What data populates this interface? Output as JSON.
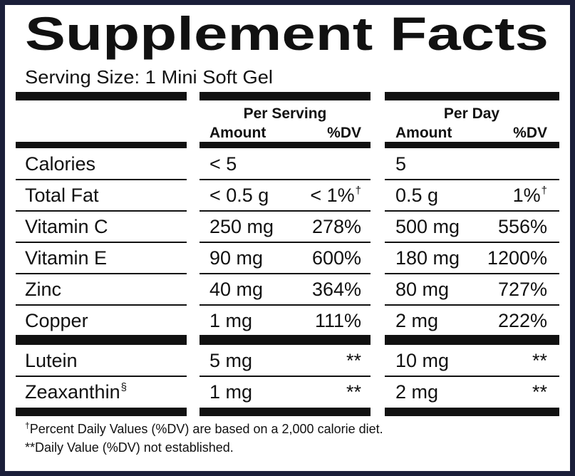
{
  "header": {
    "title": "Supplement Facts",
    "serving_size": "Serving Size: 1 Mini Soft Gel"
  },
  "table": {
    "groups": [
      "Per Serving",
      "Per Day"
    ],
    "columns": [
      "Amount",
      "%DV",
      "Amount",
      "%DV"
    ],
    "sections": [
      [
        {
          "name": "Calories",
          "serving_amount": "< 5",
          "day_amount": "5"
        },
        {
          "name": "Total Fat",
          "serving_amount": "< 0.5 g",
          "serving_dv": "< 1%",
          "serving_dv_mark": "†",
          "day_amount": "0.5 g",
          "day_dv": "1%",
          "day_dv_mark": "†"
        },
        {
          "name": "Vitamin C",
          "serving_amount": "250 mg",
          "serving_dv": "278%",
          "day_amount": "500 mg",
          "day_dv": "556%"
        },
        {
          "name": "Vitamin E",
          "serving_amount": "90 mg",
          "serving_dv": "600%",
          "day_amount": "180 mg",
          "day_dv": "1200%"
        },
        {
          "name": "Zinc",
          "serving_amount": "40 mg",
          "serving_dv": "364%",
          "day_amount": "80 mg",
          "day_dv": "727%"
        },
        {
          "name": "Copper",
          "serving_amount": "1 mg",
          "serving_dv": "111%",
          "day_amount": "2 mg",
          "day_dv": "222%"
        }
      ],
      [
        {
          "name": "Lutein",
          "serving_amount": "5 mg",
          "serving_dv": "**",
          "day_amount": "10 mg",
          "day_dv": "**"
        },
        {
          "name": "Zeaxanthin",
          "name_mark": "§",
          "serving_amount": "1 mg",
          "serving_dv": "**",
          "day_amount": "2 mg",
          "day_dv": "**"
        }
      ]
    ]
  },
  "footnotes": [
    {
      "mark": "†",
      "text": "Percent Daily Values (%DV) are based on a 2,000 calorie diet."
    },
    {
      "text": "**Daily Value (%DV) not established."
    }
  ]
}
